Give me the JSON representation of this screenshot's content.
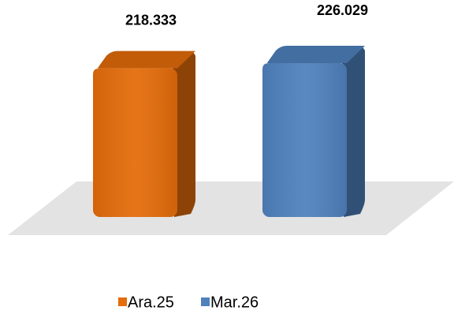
{
  "chart_data": {
    "type": "bar",
    "categories": [
      null
    ],
    "series": [
      {
        "name": "Ara.25",
        "color": "#e46c0a",
        "values": [
          218333
        ],
        "value_labels": [
          "218.333"
        ]
      },
      {
        "name": "Mar.26",
        "color": "#4f81bd",
        "values": [
          226029
        ],
        "value_labels": [
          "226.029"
        ]
      }
    ]
  }
}
